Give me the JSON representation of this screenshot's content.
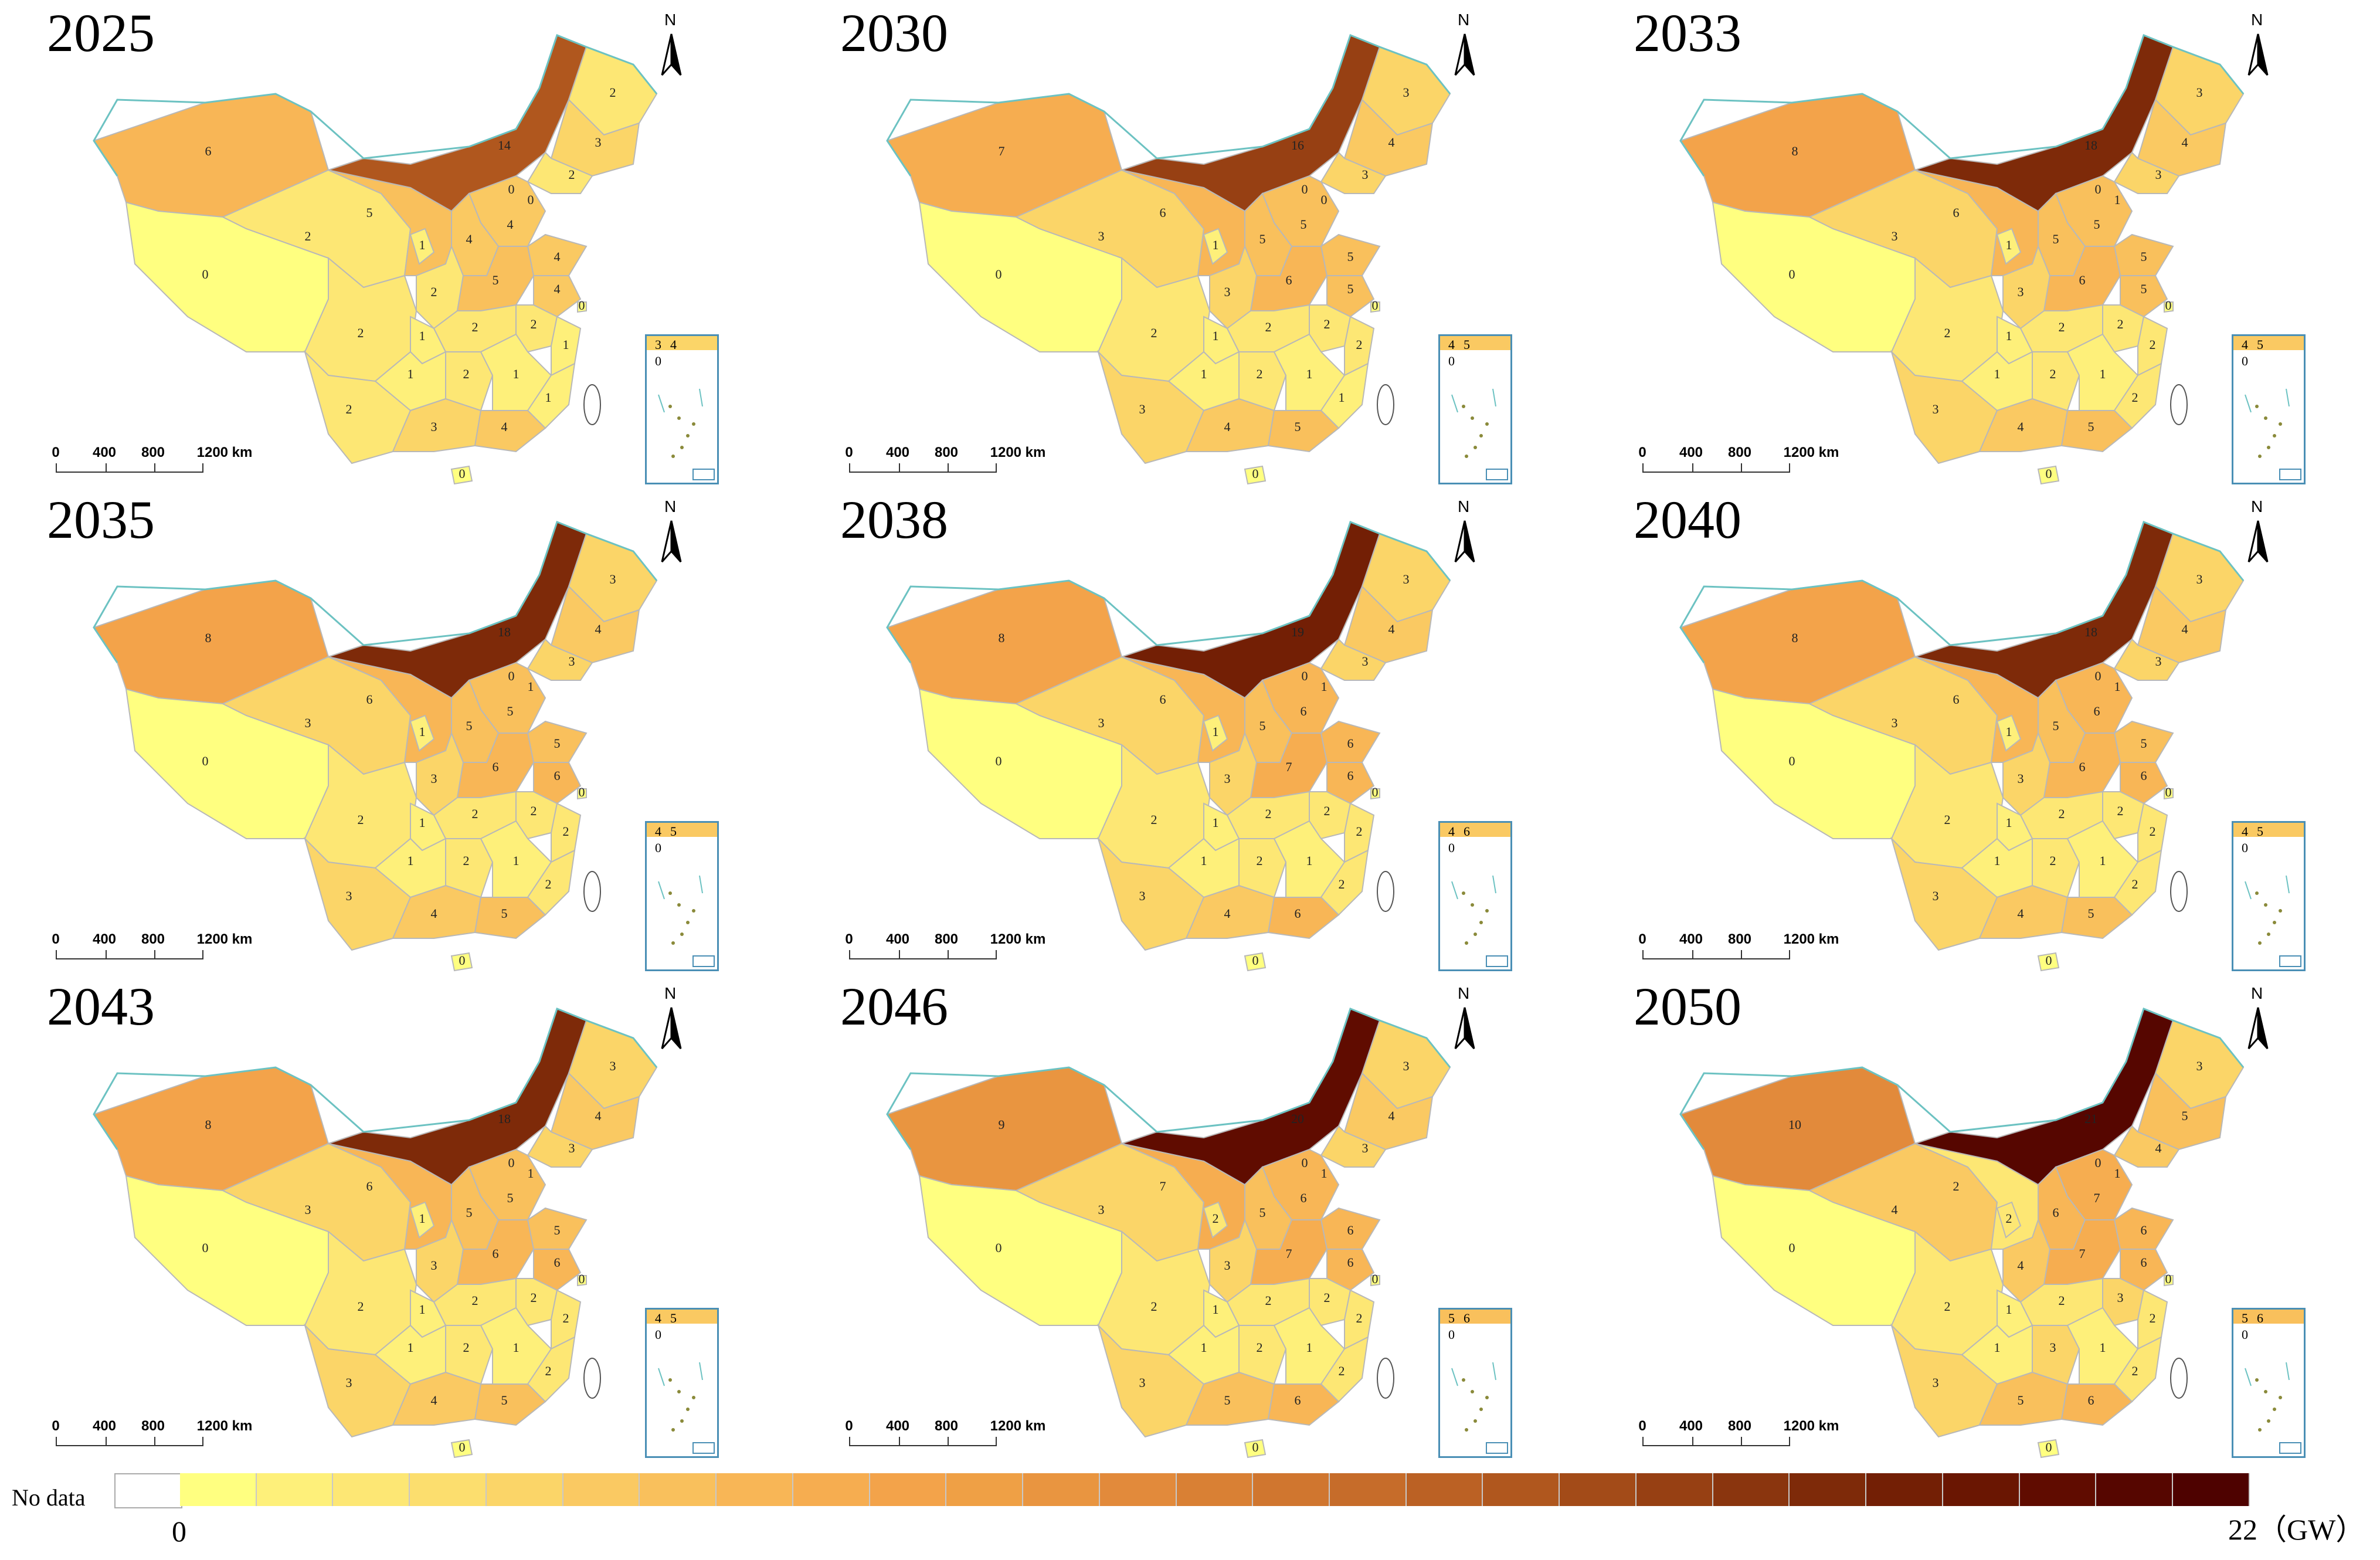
{
  "panels": [
    {
      "year": "2025",
      "values": {
        "xinjiang": "6",
        "tibet": "0",
        "qinghai": "2",
        "gansu": "5",
        "neimenggu": "14",
        "heilongjiang": "2",
        "jilin": "3",
        "liaoning": "2",
        "beijing": "0",
        "tianjin": "0",
        "hebei": "4",
        "shanxi": "4",
        "shaanxi": "2",
        "ningxia": "1",
        "shandong": "4",
        "henan": "5",
        "jiangsu": "4",
        "shanghai": "0",
        "sichuan": "2",
        "chongqing": "1",
        "hubei": "2",
        "anhui": "2",
        "zhejiang": "1",
        "guizhou": "1",
        "hunan": "2",
        "jiangxi": "1",
        "fujian": "1",
        "yunnan": "2",
        "guangxi": "3",
        "guangdong": "4",
        "hainan": "0"
      },
      "inset": [
        "3",
        "4",
        "0"
      ]
    },
    {
      "year": "2030",
      "values": {
        "xinjiang": "7",
        "tibet": "0",
        "qinghai": "3",
        "gansu": "6",
        "neimenggu": "16",
        "heilongjiang": "3",
        "jilin": "4",
        "liaoning": "3",
        "beijing": "0",
        "tianjin": "0",
        "hebei": "5",
        "shanxi": "5",
        "shaanxi": "3",
        "ningxia": "1",
        "shandong": "5",
        "henan": "6",
        "jiangsu": "5",
        "shanghai": "0",
        "sichuan": "2",
        "chongqing": "1",
        "hubei": "2",
        "anhui": "2",
        "zhejiang": "2",
        "guizhou": "1",
        "hunan": "2",
        "jiangxi": "1",
        "fujian": "1",
        "yunnan": "3",
        "guangxi": "4",
        "guangdong": "5",
        "hainan": "0"
      },
      "inset": [
        "4",
        "5",
        "0"
      ]
    },
    {
      "year": "2033",
      "values": {
        "xinjiang": "8",
        "tibet": "0",
        "qinghai": "3",
        "gansu": "6",
        "neimenggu": "18",
        "heilongjiang": "3",
        "jilin": "4",
        "liaoning": "3",
        "beijing": "0",
        "tianjin": "1",
        "hebei": "5",
        "shanxi": "5",
        "shaanxi": "3",
        "ningxia": "1",
        "shandong": "5",
        "henan": "6",
        "jiangsu": "5",
        "shanghai": "0",
        "sichuan": "2",
        "chongqing": "1",
        "hubei": "2",
        "anhui": "2",
        "zhejiang": "2",
        "guizhou": "1",
        "hunan": "2",
        "jiangxi": "1",
        "fujian": "2",
        "yunnan": "3",
        "guangxi": "4",
        "guangdong": "5",
        "hainan": "0"
      },
      "inset": [
        "4",
        "5",
        "0"
      ]
    },
    {
      "year": "2035",
      "values": {
        "xinjiang": "8",
        "tibet": "0",
        "qinghai": "3",
        "gansu": "6",
        "neimenggu": "18",
        "heilongjiang": "3",
        "jilin": "4",
        "liaoning": "3",
        "beijing": "0",
        "tianjin": "1",
        "hebei": "5",
        "shanxi": "5",
        "shaanxi": "3",
        "ningxia": "1",
        "shandong": "5",
        "henan": "6",
        "jiangsu": "6",
        "shanghai": "0",
        "sichuan": "2",
        "chongqing": "1",
        "hubei": "2",
        "anhui": "2",
        "zhejiang": "2",
        "guizhou": "1",
        "hunan": "2",
        "jiangxi": "1",
        "fujian": "2",
        "yunnan": "3",
        "guangxi": "4",
        "guangdong": "5",
        "hainan": "0"
      },
      "inset": [
        "4",
        "5",
        "0"
      ]
    },
    {
      "year": "2038",
      "values": {
        "xinjiang": "8",
        "tibet": "0",
        "qinghai": "3",
        "gansu": "6",
        "neimenggu": "19",
        "heilongjiang": "3",
        "jilin": "4",
        "liaoning": "3",
        "beijing": "0",
        "tianjin": "1",
        "hebei": "6",
        "shanxi": "5",
        "shaanxi": "3",
        "ningxia": "1",
        "shandong": "6",
        "henan": "7",
        "jiangsu": "6",
        "shanghai": "0",
        "sichuan": "2",
        "chongqing": "1",
        "hubei": "2",
        "anhui": "2",
        "zhejiang": "2",
        "guizhou": "1",
        "hunan": "2",
        "jiangxi": "1",
        "fujian": "2",
        "yunnan": "3",
        "guangxi": "4",
        "guangdong": "6",
        "hainan": "0"
      },
      "inset": [
        "4",
        "6",
        "0"
      ]
    },
    {
      "year": "2040",
      "values": {
        "xinjiang": "8",
        "tibet": "0",
        "qinghai": "3",
        "gansu": "6",
        "neimenggu": "18",
        "heilongjiang": "3",
        "jilin": "4",
        "liaoning": "3",
        "beijing": "0",
        "tianjin": "1",
        "hebei": "6",
        "shanxi": "5",
        "shaanxi": "3",
        "ningxia": "1",
        "shandong": "5",
        "henan": "6",
        "jiangsu": "6",
        "shanghai": "0",
        "sichuan": "2",
        "chongqing": "1",
        "hubei": "2",
        "anhui": "2",
        "zhejiang": "2",
        "guizhou": "1",
        "hunan": "2",
        "jiangxi": "1",
        "fujian": "2",
        "yunnan": "3",
        "guangxi": "4",
        "guangdong": "5",
        "hainan": "0"
      },
      "inset": [
        "4",
        "5",
        "0"
      ]
    },
    {
      "year": "2043",
      "values": {
        "xinjiang": "8",
        "tibet": "0",
        "qinghai": "3",
        "gansu": "6",
        "neimenggu": "18",
        "heilongjiang": "3",
        "jilin": "4",
        "liaoning": "3",
        "beijing": "0",
        "tianjin": "1",
        "hebei": "5",
        "shanxi": "5",
        "shaanxi": "3",
        "ningxia": "1",
        "shandong": "5",
        "henan": "6",
        "jiangsu": "6",
        "shanghai": "0",
        "sichuan": "2",
        "chongqing": "1",
        "hubei": "2",
        "anhui": "2",
        "zhejiang": "2",
        "guizhou": "1",
        "hunan": "2",
        "jiangxi": "1",
        "fujian": "2",
        "yunnan": "3",
        "guangxi": "4",
        "guangdong": "5",
        "hainan": "0"
      },
      "inset": [
        "4",
        "5",
        "0"
      ]
    },
    {
      "year": "2046",
      "values": {
        "xinjiang": "9",
        "tibet": "0",
        "qinghai": "3",
        "gansu": "7",
        "neimenggu": "20",
        "heilongjiang": "3",
        "jilin": "4",
        "liaoning": "3",
        "beijing": "0",
        "tianjin": "1",
        "hebei": "6",
        "shanxi": "5",
        "shaanxi": "3",
        "ningxia": "2",
        "shandong": "6",
        "henan": "7",
        "jiangsu": "6",
        "shanghai": "0",
        "sichuan": "2",
        "chongqing": "1",
        "hubei": "2",
        "anhui": "2",
        "zhejiang": "2",
        "guizhou": "1",
        "hunan": "2",
        "jiangxi": "1",
        "fujian": "2",
        "yunnan": "3",
        "guangxi": "5",
        "guangdong": "6",
        "hainan": "0"
      },
      "inset": [
        "5",
        "6",
        "0"
      ]
    },
    {
      "year": "2050",
      "values": {
        "xinjiang": "10",
        "tibet": "0",
        "qinghai": "4",
        "gansu": "2",
        "neimenggu": "21",
        "heilongjiang": "3",
        "jilin": "5",
        "liaoning": "4",
        "beijing": "0",
        "tianjin": "1",
        "hebei": "7",
        "shanxi": "6",
        "shaanxi": "4",
        "ningxia": "2",
        "shandong": "6",
        "henan": "7",
        "jiangsu": "6",
        "shanghai": "0",
        "sichuan": "2",
        "chongqing": "1",
        "hubei": "2",
        "anhui": "3",
        "zhejiang": "2",
        "guizhou": "1",
        "hunan": "3",
        "jiangxi": "1",
        "fujian": "2",
        "yunnan": "3",
        "guangxi": "5",
        "guangdong": "6",
        "hainan": "0"
      },
      "inset": [
        "5",
        "6",
        "0"
      ]
    }
  ],
  "north_label": "N",
  "scale_ticks": [
    "0",
    "400",
    "800",
    "1200 km"
  ],
  "legend": {
    "no_data_label": "No data",
    "min_label": "0",
    "max_label": "22（GW）",
    "max_value": 22,
    "colors": [
      "#ffff80",
      "#fef07a",
      "#fde774",
      "#fcde6e",
      "#fbd568",
      "#fac962",
      "#f9c05c",
      "#f8b656",
      "#f6ad50",
      "#f3a34a",
      "#efa045",
      "#e99540",
      "#e28a3b",
      "#d98034",
      "#d0762f",
      "#c66c2a",
      "#bb6124",
      "#b0571e",
      "#a34b18",
      "#974013",
      "#8a350e",
      "#7e2a09",
      "#731f05",
      "#6a1602",
      "#600c00",
      "#560600",
      "#4e0200"
    ]
  }
}
